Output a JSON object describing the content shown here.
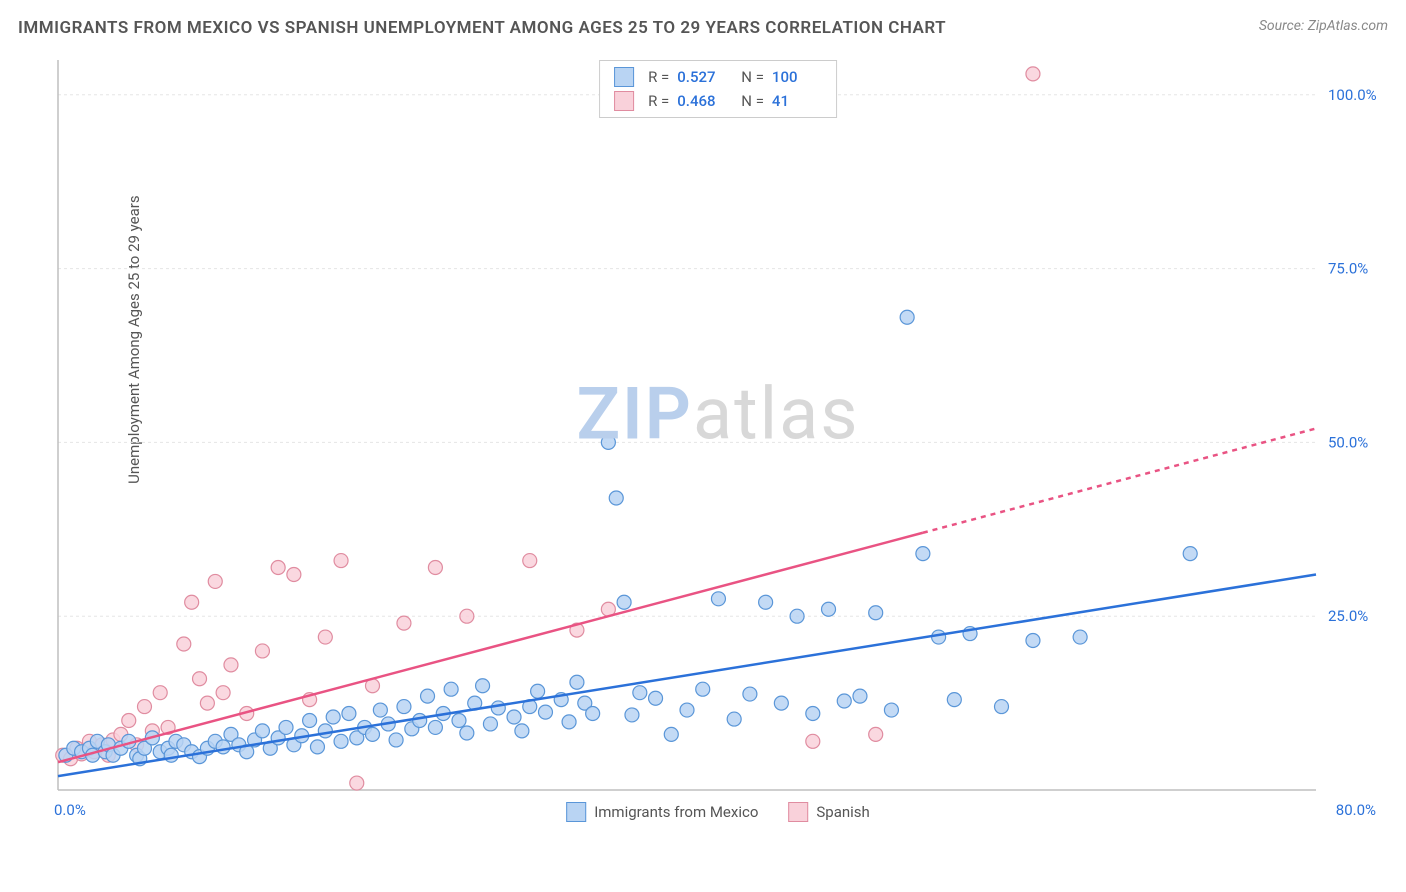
{
  "title": "IMMIGRANTS FROM MEXICO VS SPANISH UNEMPLOYMENT AMONG AGES 25 TO 29 YEARS CORRELATION CHART",
  "source": "Source: ZipAtlas.com",
  "y_axis_label": "Unemployment Among Ages 25 to 29 years",
  "watermark": {
    "part1": "ZIP",
    "part2": "atlas"
  },
  "chart": {
    "type": "scatter",
    "background_color": "#ffffff",
    "grid_color": "#e5e5e5",
    "axis_line_color": "#bfbfbf",
    "xlim": [
      0,
      80
    ],
    "ylim": [
      0,
      105
    ],
    "x_ticks": [
      0,
      80
    ],
    "x_tick_labels": [
      "0.0%",
      "80.0%"
    ],
    "y_ticks": [
      25,
      50,
      75,
      100
    ],
    "y_tick_labels": [
      "25.0%",
      "50.0%",
      "75.0%",
      "100.0%"
    ],
    "tick_label_color": "#2b71d9",
    "tick_label_fontsize": 15,
    "series": [
      {
        "name": "Immigrants from Mexico",
        "marker_fill": "#b9d4f3",
        "marker_stroke": "#5a96d8",
        "marker_radius": 7,
        "trend_color": "#2b71d9",
        "trend_width": 2.5,
        "trend_dash_after_x": 80,
        "R": "0.527",
        "N": "100",
        "trend": {
          "x1": 0,
          "y1": 2,
          "x2": 80,
          "y2": 31
        },
        "points": [
          [
            0.5,
            5
          ],
          [
            1,
            6
          ],
          [
            1.5,
            5.5
          ],
          [
            2,
            6
          ],
          [
            2.2,
            5
          ],
          [
            2.5,
            7
          ],
          [
            3,
            5.5
          ],
          [
            3.2,
            6.5
          ],
          [
            3.5,
            5
          ],
          [
            4,
            6
          ],
          [
            4.5,
            7
          ],
          [
            5,
            5
          ],
          [
            5.2,
            4.5
          ],
          [
            5.5,
            6
          ],
          [
            6,
            7.5
          ],
          [
            6.5,
            5.5
          ],
          [
            7,
            6
          ],
          [
            7.2,
            5
          ],
          [
            7.5,
            7
          ],
          [
            8,
            6.5
          ],
          [
            8.5,
            5.5
          ],
          [
            9,
            4.8
          ],
          [
            9.5,
            6
          ],
          [
            10,
            7
          ],
          [
            10.5,
            6.2
          ],
          [
            11,
            8
          ],
          [
            11.5,
            6.5
          ],
          [
            12,
            5.5
          ],
          [
            12.5,
            7.2
          ],
          [
            13,
            8.5
          ],
          [
            13.5,
            6
          ],
          [
            14,
            7.5
          ],
          [
            14.5,
            9
          ],
          [
            15,
            6.5
          ],
          [
            15.5,
            7.8
          ],
          [
            16,
            10
          ],
          [
            16.5,
            6.2
          ],
          [
            17,
            8.5
          ],
          [
            17.5,
            10.5
          ],
          [
            18,
            7
          ],
          [
            18.5,
            11
          ],
          [
            19,
            7.5
          ],
          [
            19.5,
            9
          ],
          [
            20,
            8
          ],
          [
            20.5,
            11.5
          ],
          [
            21,
            9.5
          ],
          [
            21.5,
            7.2
          ],
          [
            22,
            12
          ],
          [
            22.5,
            8.8
          ],
          [
            23,
            10
          ],
          [
            23.5,
            13.5
          ],
          [
            24,
            9
          ],
          [
            24.5,
            11
          ],
          [
            25,
            14.5
          ],
          [
            25.5,
            10
          ],
          [
            26,
            8.2
          ],
          [
            26.5,
            12.5
          ],
          [
            27,
            15
          ],
          [
            27.5,
            9.5
          ],
          [
            28,
            11.8
          ],
          [
            29,
            10.5
          ],
          [
            29.5,
            8.5
          ],
          [
            30,
            12
          ],
          [
            30.5,
            14.2
          ],
          [
            31,
            11.2
          ],
          [
            32,
            13
          ],
          [
            32.5,
            9.8
          ],
          [
            33,
            15.5
          ],
          [
            33.5,
            12.5
          ],
          [
            34,
            11
          ],
          [
            35,
            50
          ],
          [
            35.5,
            42
          ],
          [
            36,
            27
          ],
          [
            36.5,
            10.8
          ],
          [
            37,
            14
          ],
          [
            38,
            13.2
          ],
          [
            39,
            8
          ],
          [
            40,
            11.5
          ],
          [
            41,
            14.5
          ],
          [
            42,
            27.5
          ],
          [
            43,
            10.2
          ],
          [
            44,
            13.8
          ],
          [
            45,
            27
          ],
          [
            46,
            12.5
          ],
          [
            47,
            25
          ],
          [
            48,
            11
          ],
          [
            49,
            26
          ],
          [
            50,
            12.8
          ],
          [
            51,
            13.5
          ],
          [
            52,
            25.5
          ],
          [
            53,
            11.5
          ],
          [
            54,
            68
          ],
          [
            55,
            34
          ],
          [
            56,
            22
          ],
          [
            57,
            13
          ],
          [
            58,
            22.5
          ],
          [
            60,
            12
          ],
          [
            62,
            21.5
          ],
          [
            65,
            22
          ],
          [
            72,
            34
          ]
        ]
      },
      {
        "name": "Spanish",
        "marker_fill": "#f9d1da",
        "marker_stroke": "#e08ca0",
        "marker_radius": 7,
        "trend_color": "#e95383",
        "trend_width": 2.5,
        "trend_dash_after_x": 55,
        "R": "0.468",
        "N": "41",
        "trend": {
          "x1": 0,
          "y1": 4,
          "x2": 80,
          "y2": 52
        },
        "points": [
          [
            0.3,
            5
          ],
          [
            0.8,
            4.5
          ],
          [
            1.2,
            6
          ],
          [
            1.5,
            5.2
          ],
          [
            2,
            7
          ],
          [
            2.3,
            5.5
          ],
          [
            2.8,
            6.5
          ],
          [
            3.2,
            5
          ],
          [
            3.5,
            7.2
          ],
          [
            4,
            8
          ],
          [
            4.5,
            10
          ],
          [
            5,
            6.5
          ],
          [
            5.5,
            12
          ],
          [
            6,
            8.5
          ],
          [
            6.5,
            14
          ],
          [
            7,
            9
          ],
          [
            8,
            21
          ],
          [
            8.5,
            27
          ],
          [
            9,
            16
          ],
          [
            9.5,
            12.5
          ],
          [
            10,
            30
          ],
          [
            10.5,
            14
          ],
          [
            11,
            18
          ],
          [
            12,
            11
          ],
          [
            13,
            20
          ],
          [
            14,
            32
          ],
          [
            15,
            31
          ],
          [
            16,
            13
          ],
          [
            17,
            22
          ],
          [
            18,
            33
          ],
          [
            19,
            1
          ],
          [
            20,
            15
          ],
          [
            22,
            24
          ],
          [
            24,
            32
          ],
          [
            26,
            25
          ],
          [
            30,
            33
          ],
          [
            33,
            23
          ],
          [
            35,
            26
          ],
          [
            48,
            7
          ],
          [
            52,
            8
          ],
          [
            62,
            103
          ]
        ]
      }
    ]
  },
  "legend_bottom": [
    {
      "label": "Immigrants from Mexico",
      "fill": "#b9d4f3",
      "stroke": "#5a96d8"
    },
    {
      "label": "Spanish",
      "fill": "#f9d1da",
      "stroke": "#e08ca0"
    }
  ]
}
